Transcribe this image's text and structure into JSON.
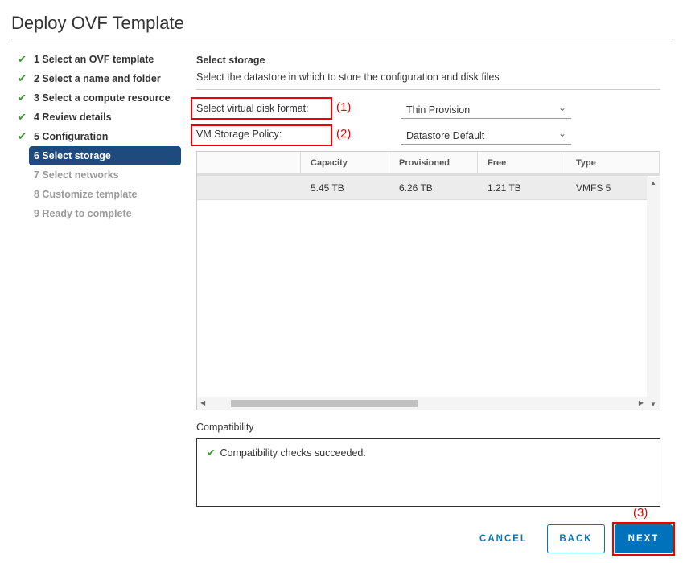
{
  "title": "Deploy OVF Template",
  "steps": [
    {
      "label": "1 Select an OVF template",
      "state": "done"
    },
    {
      "label": "2 Select a name and folder",
      "state": "done"
    },
    {
      "label": "3 Select a compute resource",
      "state": "done"
    },
    {
      "label": "4 Review details",
      "state": "done"
    },
    {
      "label": "5 Configuration",
      "state": "done"
    },
    {
      "label": "6 Select storage",
      "state": "active"
    },
    {
      "label": "7 Select networks",
      "state": "future"
    },
    {
      "label": "8 Customize template",
      "state": "future"
    },
    {
      "label": "9 Ready to complete",
      "state": "future"
    }
  ],
  "main": {
    "heading": "Select storage",
    "description": "Select the datastore in which to store the configuration and disk files",
    "disk_format_label": "Select virtual disk format:",
    "disk_format_value": "Thin Provision",
    "policy_label": "VM Storage Policy:",
    "policy_value": "Datastore Default",
    "annotations": [
      "(1)",
      "(2)",
      "(3)"
    ]
  },
  "table": {
    "columns": [
      "",
      "Capacity",
      "Provisioned",
      "Free",
      "Type"
    ],
    "rows": [
      [
        "",
        "5.45 TB",
        "6.26 TB",
        "1.21 TB",
        "VMFS 5"
      ]
    ]
  },
  "compatibility": {
    "label": "Compatibility",
    "message": "Compatibility checks succeeded."
  },
  "buttons": {
    "cancel": "CANCEL",
    "back": "BACK",
    "next": "NEXT"
  },
  "colors": {
    "accent": "#0072bb",
    "active_step": "#1e4a7d",
    "check": "#3c9b36",
    "annotation": "#ee0000"
  }
}
